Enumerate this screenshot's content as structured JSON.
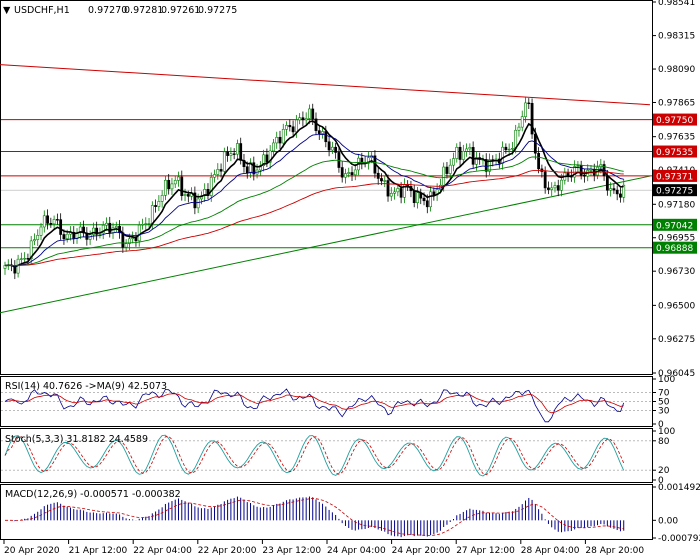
{
  "header": {
    "symbol": "USDCHF,H1",
    "open": "0.97270",
    "high": "0.97281",
    "low": "0.97261",
    "close": "0.97275"
  },
  "colors": {
    "bull_candle": "#008000",
    "bear_candle": "#000000",
    "ema_fast": "#000000",
    "ema_mid": "#00008b",
    "ema_slow_green": "#008000",
    "ema_slow_red": "#cc0000",
    "level_red": "#cc0000",
    "level_green": "#008000",
    "rsi_line": "#00008b",
    "rsi_ma": "#cc0000",
    "stoch_main": "#20a0a0",
    "stoch_signal": "#cc0000",
    "macd_hist": "#00008b",
    "macd_signal": "#cc0000"
  },
  "chart_data": {
    "type": "candlestick",
    "ylim": [
      0.96045,
      0.98541
    ],
    "y_ticks": [
      "0.98541",
      "0.98315",
      "0.98090",
      "0.97865",
      "0.97635",
      "0.97410",
      "0.97180",
      "0.96955",
      "0.96730",
      "0.96500",
      "0.96275",
      "0.96045"
    ],
    "x_ticks": [
      "20 Apr 2020",
      "21 Apr 12:00",
      "22 Apr 04:00",
      "22 Apr 20:00",
      "23 Apr 12:00",
      "24 Apr 04:00",
      "24 Apr 20:00",
      "27 Apr 12:00",
      "28 Apr 04:00",
      "28 Apr 20:00"
    ],
    "price_levels": [
      {
        "value": 0.9775,
        "label": "0.97750",
        "color": "red"
      },
      {
        "value": 0.97535,
        "label": "0.97535",
        "color": "red"
      },
      {
        "value": 0.97371,
        "label": "0.97371",
        "color": "red"
      },
      {
        "value": 0.97275,
        "label": "0.97275",
        "color": "black"
      },
      {
        "value": 0.97042,
        "label": "0.97042",
        "color": "green"
      },
      {
        "value": 0.96888,
        "label": "0.96888",
        "color": "green"
      }
    ],
    "trendlines": [
      {
        "color": "red",
        "from": [
          0,
          0.9812
        ],
        "to": [
          1,
          0.9785
        ]
      },
      {
        "color": "green",
        "from": [
          0,
          0.9645
        ],
        "to": [
          1,
          0.9737
        ]
      }
    ],
    "close_path": [
      0.9675,
      0.9677,
      0.9686,
      0.9705,
      0.9708,
      0.9695,
      0.97,
      0.9697,
      0.9702,
      0.9703,
      0.969,
      0.97,
      0.971,
      0.9727,
      0.9735,
      0.9723,
      0.972,
      0.9733,
      0.9748,
      0.9756,
      0.974,
      0.9743,
      0.9756,
      0.9768,
      0.9772,
      0.978,
      0.9765,
      0.9755,
      0.9735,
      0.9744,
      0.975,
      0.9733,
      0.9724,
      0.973,
      0.9722,
      0.972,
      0.9735,
      0.975,
      0.9755,
      0.9747,
      0.9745,
      0.9752,
      0.976,
      0.979,
      0.974,
      0.9726,
      0.9735,
      0.9742,
      0.9738,
      0.9744,
      0.9725,
      0.9727
    ],
    "rsi": {
      "label": "RSI(14) 40.7626  ->MA(9) 42.5073",
      "ticks": [
        "100",
        "70",
        "50",
        "30",
        "0"
      ],
      "ylim": [
        0,
        100
      ]
    },
    "stoch": {
      "label": "Stoch(5,3,3) 31.8182 24.4589",
      "ticks": [
        "100",
        "80",
        "20",
        "0"
      ],
      "ylim": [
        0,
        100
      ]
    },
    "macd": {
      "label": "MACD(12,26,9) -0.000571 -0.000382",
      "ticks": [
        "0.001492",
        "0.00",
        "-0.000792"
      ],
      "ylim": [
        -0.000792,
        0.001492
      ]
    }
  }
}
